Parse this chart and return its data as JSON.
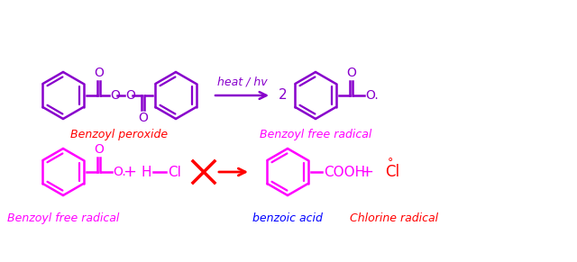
{
  "bg_color": "#ffffff",
  "purple": "#8800cc",
  "magenta": "#ff00ff",
  "red": "#ff0000",
  "blue": "#0000ff",
  "label_benzoyl_peroxide": "Benzoyl peroxide",
  "label_benzoyl_free_radical_top": "Benzoyl free radical",
  "label_benzoyl_free_radical_bottom": "Benzoyl free radical",
  "label_benzoic_acid": "benzoic acid",
  "label_chlorine_radical": "Chlorine radical",
  "label_heat_hv": "heat / hv",
  "figsize": [
    6.4,
    2.91
  ],
  "dpi": 100
}
